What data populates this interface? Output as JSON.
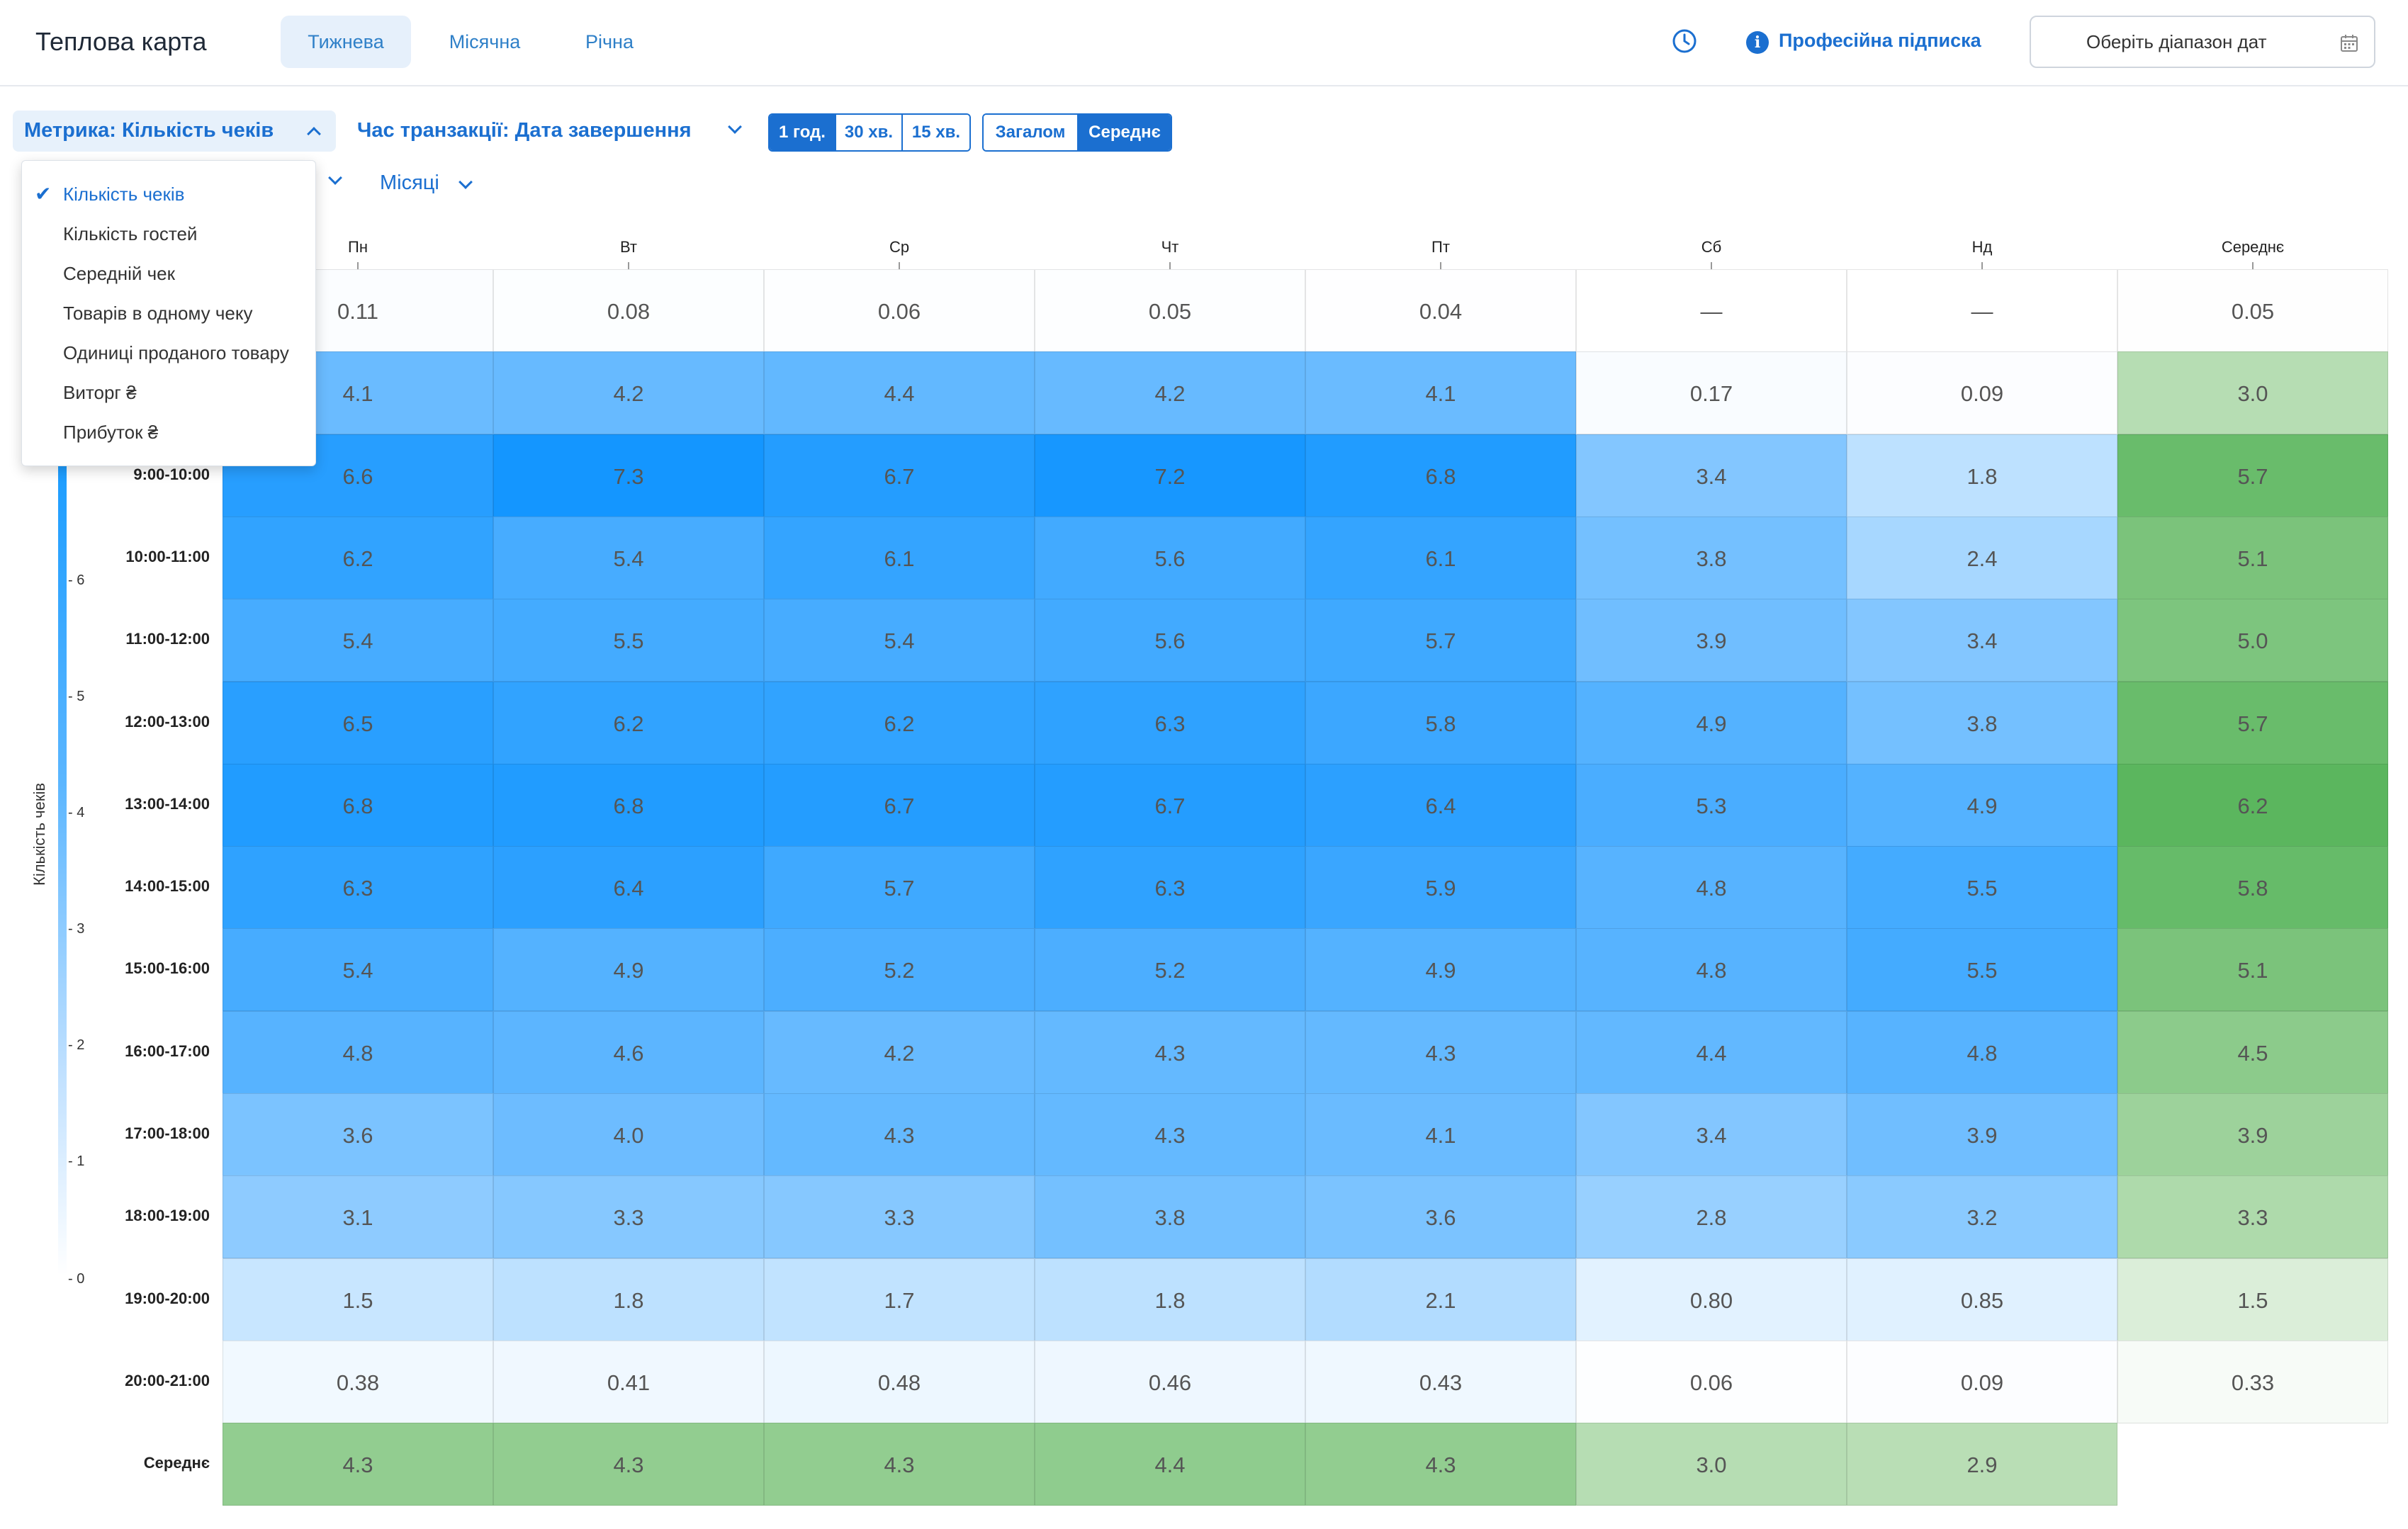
{
  "header": {
    "title": "Теплова карта",
    "tabs": [
      {
        "label": "Тижнева",
        "active": true
      },
      {
        "label": "Місячна",
        "active": false
      },
      {
        "label": "Річна",
        "active": false
      }
    ],
    "subscription": "Професійна підписка",
    "date_range_placeholder": "Оберіть діапазон дат",
    "icons": [
      "clock-icon",
      "info-icon",
      "calendar-icon"
    ]
  },
  "filters": {
    "metric_label": "Метрика: Кількість чеків",
    "time_label": "Час транзакції: Дата завершення",
    "intervals": [
      {
        "label": "1 год.",
        "active": true
      },
      {
        "label": "30 хв.",
        "active": false
      },
      {
        "label": "15 хв.",
        "active": false
      }
    ],
    "modes": [
      {
        "label": "Загалом",
        "active": false
      },
      {
        "label": "Середнє",
        "active": true
      }
    ],
    "months_label": "Місяці"
  },
  "dropdown": {
    "items": [
      {
        "label": "Кількість чеків",
        "selected": true
      },
      {
        "label": "Кількість гостей",
        "selected": false
      },
      {
        "label": "Середній чек",
        "selected": false
      },
      {
        "label": "Товарів в одному чеку",
        "selected": false
      },
      {
        "label": "Одиниці проданого товару",
        "selected": false
      },
      {
        "label": "Виторг ₴",
        "selected": false
      },
      {
        "label": "Прибуток ₴",
        "selected": false
      }
    ]
  },
  "legend": {
    "title": "Кількість чеків",
    "ticks": [
      "6",
      "5",
      "4",
      "3",
      "2",
      "1",
      "0"
    ],
    "colors": {
      "max": "#1a9cff",
      "min": "#ffffff",
      "avg_high": "#5fb760",
      "avg_low": "#f2f8f0"
    }
  },
  "chart_data": {
    "type": "heatmap",
    "columns": [
      "Пн",
      "Вт",
      "Ср",
      "Чт",
      "Пт",
      "Сб",
      "Нд",
      "Середнє"
    ],
    "rows": [
      {
        "label": "",
        "values": [
          "0.11",
          "0.08",
          "0.06",
          "0.05",
          "0.04",
          "—",
          "—",
          "0.05"
        ]
      },
      {
        "label": "",
        "values": [
          "4.1",
          "4.2",
          "4.4",
          "4.2",
          "4.1",
          "0.17",
          "0.09",
          "3.0"
        ]
      },
      {
        "label": "9:00-10:00",
        "values": [
          "6.6",
          "7.3",
          "6.7",
          "7.2",
          "6.8",
          "3.4",
          "1.8",
          "5.7"
        ]
      },
      {
        "label": "10:00-11:00",
        "values": [
          "6.2",
          "5.4",
          "6.1",
          "5.6",
          "6.1",
          "3.8",
          "2.4",
          "5.1"
        ]
      },
      {
        "label": "11:00-12:00",
        "values": [
          "5.4",
          "5.5",
          "5.4",
          "5.6",
          "5.7",
          "3.9",
          "3.4",
          "5.0"
        ]
      },
      {
        "label": "12:00-13:00",
        "values": [
          "6.5",
          "6.2",
          "6.2",
          "6.3",
          "5.8",
          "4.9",
          "3.8",
          "5.7"
        ]
      },
      {
        "label": "13:00-14:00",
        "values": [
          "6.8",
          "6.8",
          "6.7",
          "6.7",
          "6.4",
          "5.3",
          "4.9",
          "6.2"
        ]
      },
      {
        "label": "14:00-15:00",
        "values": [
          "6.3",
          "6.4",
          "5.7",
          "6.3",
          "5.9",
          "4.8",
          "5.5",
          "5.8"
        ]
      },
      {
        "label": "15:00-16:00",
        "values": [
          "5.4",
          "4.9",
          "5.2",
          "5.2",
          "4.9",
          "4.8",
          "5.5",
          "5.1"
        ]
      },
      {
        "label": "16:00-17:00",
        "values": [
          "4.8",
          "4.6",
          "4.2",
          "4.3",
          "4.3",
          "4.4",
          "4.8",
          "4.5"
        ]
      },
      {
        "label": "17:00-18:00",
        "values": [
          "3.6",
          "4.0",
          "4.3",
          "4.3",
          "4.1",
          "3.4",
          "3.9",
          "3.9"
        ]
      },
      {
        "label": "18:00-19:00",
        "values": [
          "3.1",
          "3.3",
          "3.3",
          "3.8",
          "3.6",
          "2.8",
          "3.2",
          "3.3"
        ]
      },
      {
        "label": "19:00-20:00",
        "values": [
          "1.5",
          "1.8",
          "1.7",
          "1.8",
          "2.1",
          "0.80",
          "0.85",
          "1.5"
        ]
      },
      {
        "label": "20:00-21:00",
        "values": [
          "0.38",
          "0.41",
          "0.48",
          "0.46",
          "0.43",
          "0.06",
          "0.09",
          "0.33"
        ]
      },
      {
        "label": "Середнє",
        "values": [
          "4.3",
          "4.3",
          "4.3",
          "4.4",
          "4.3",
          "3.0",
          "2.9",
          ""
        ]
      }
    ]
  }
}
